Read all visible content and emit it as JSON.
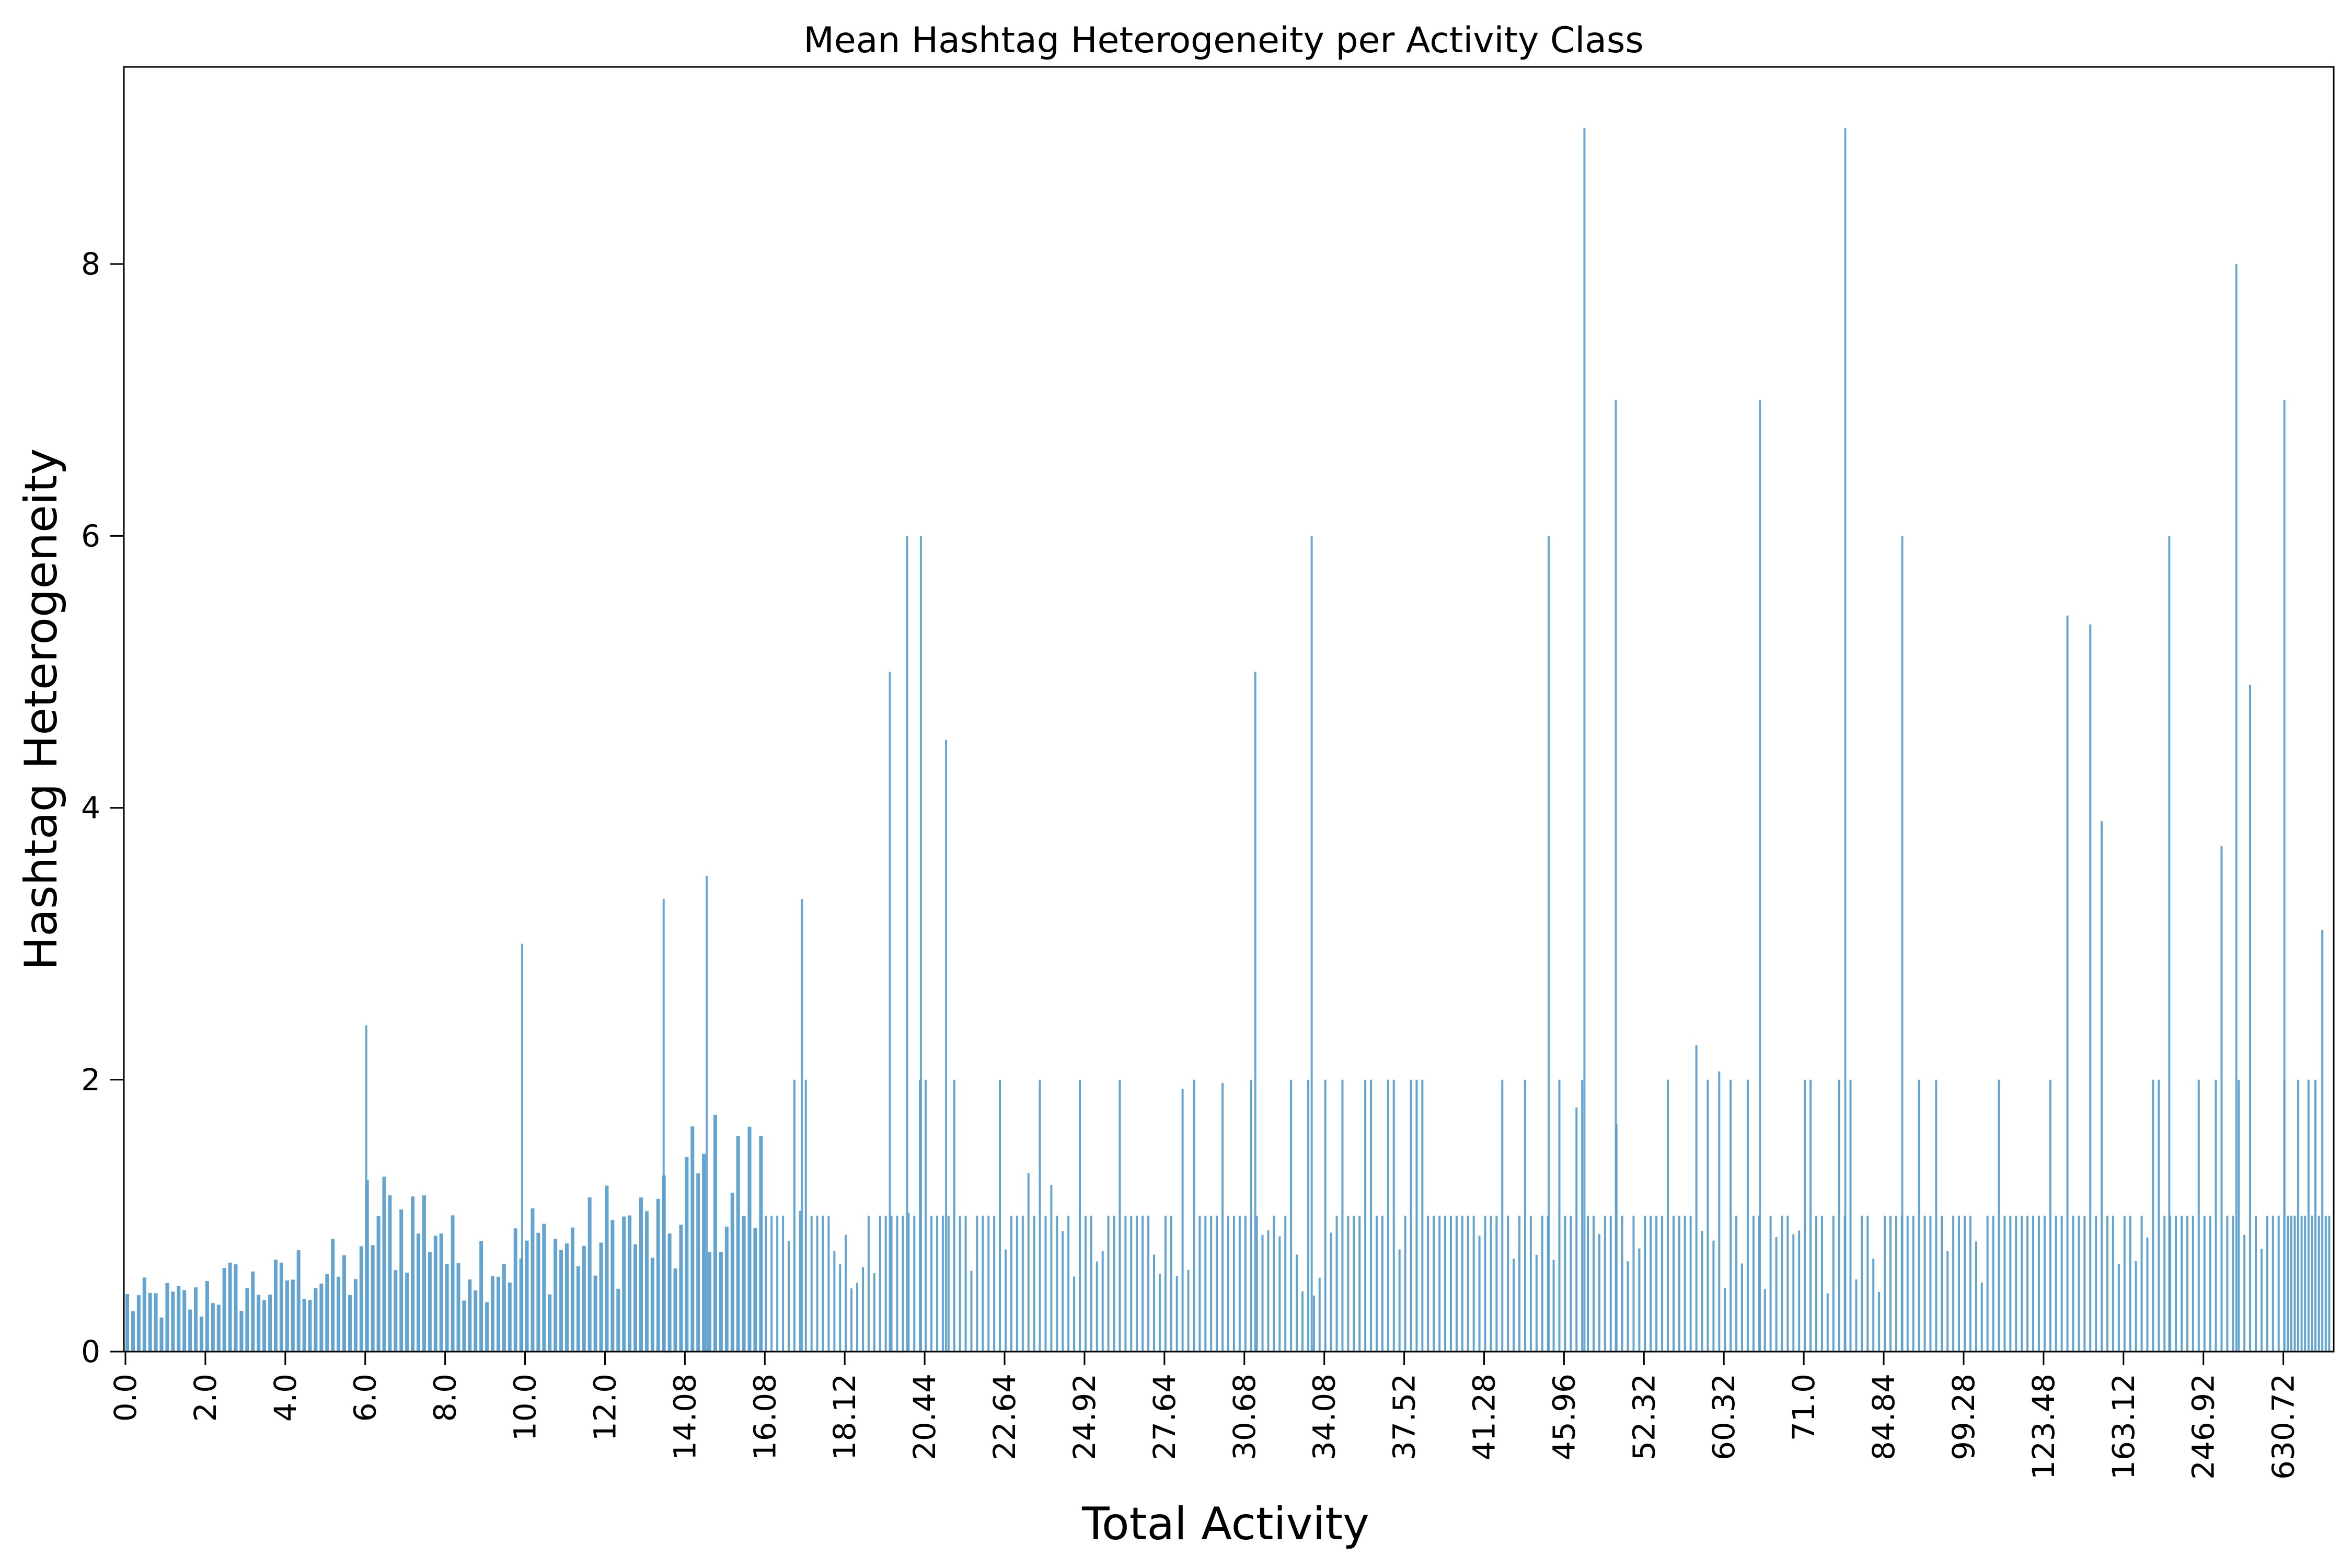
{
  "chart_data": {
    "type": "bar",
    "title": "Mean Hashtag Heterogeneity per Activity Class",
    "xlabel": "Total Activity",
    "ylabel": "Hashtag Heterogeneity",
    "ylim": [
      0,
      9.45
    ],
    "yticks": [
      0,
      2,
      4,
      6,
      8
    ],
    "bar_color": "#5b9fce",
    "grid": false,
    "categories": [
      "0.0",
      "2.0",
      "4.0",
      "6.0",
      "8.0",
      "10.0",
      "12.0",
      "14.08",
      "16.08",
      "18.12",
      "20.44",
      "22.64",
      "24.92",
      "27.64",
      "30.68",
      "34.08",
      "37.52",
      "41.28",
      "45.96",
      "52.32",
      "60.32",
      "71.0",
      "84.84",
      "99.28",
      "123.48",
      "163.12",
      "246.92",
      "630.72"
    ],
    "series": [
      {
        "values": [
          0.42,
          0.55,
          0.65,
          1.1,
          0.8,
          0.9,
          1.0,
          1.4,
          1.3,
          1.2,
          3.0,
          2.0,
          1.1,
          2.0,
          1.0,
          6.0,
          1.5,
          1.0,
          2.0,
          2.5,
          1.2,
          2.0,
          1.3,
          1.0,
          6.0,
          3.5,
          5.0,
          4.5
        ]
      }
    ],
    "peaks": [
      {
        "at": "6.0",
        "value": 2.4
      },
      {
        "at": "9.9",
        "value": 3.0
      },
      {
        "at": "13.5",
        "value": 3.33
      },
      {
        "at": "14.6",
        "value": 3.5
      },
      {
        "at": "17.0",
        "value": 3.33
      },
      {
        "at": "19.4",
        "value": 5.0
      },
      {
        "at": "19.9",
        "value": 6.0
      },
      {
        "at": "20.3",
        "value": 6.0
      },
      {
        "at": "21.0",
        "value": 4.5
      },
      {
        "at": "31.1",
        "value": 5.0
      },
      {
        "at": "33.5",
        "value": 6.0
      },
      {
        "at": "45.0",
        "value": 6.0
      },
      {
        "at": "47.5",
        "value": 9.0
      },
      {
        "at": "50.0",
        "value": 7.0
      },
      {
        "at": "65.0",
        "value": 7.0
      },
      {
        "at": "78.0",
        "value": 9.0
      },
      {
        "at": "88.0",
        "value": 6.0
      },
      {
        "at": "210.0",
        "value": 6.0
      },
      {
        "at": "400.0",
        "value": 8.0
      },
      {
        "at": "630.72",
        "value": 7.0
      }
    ]
  }
}
